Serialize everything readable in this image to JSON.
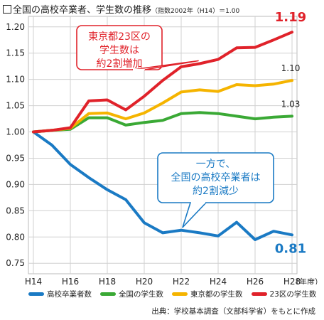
{
  "title": {
    "main": "全国の高校卒業者、学生数の推移",
    "sub": "（指数2002年（H14）＝1.00"
  },
  "chart_data": {
    "type": "line",
    "x": [
      "H14",
      "H15",
      "H16",
      "H17",
      "H18",
      "H19",
      "H20",
      "H21",
      "H22",
      "H23",
      "H24",
      "H25",
      "H26",
      "H27",
      "H28"
    ],
    "x_tick_labels": [
      "H14",
      "H16",
      "H18",
      "H20",
      "H22",
      "H24",
      "H26",
      "H28"
    ],
    "x_unit": "（年度）",
    "ylim": [
      0.73,
      1.22
    ],
    "y_ticks": [
      "1.20",
      "1.15",
      "1.10",
      "1.05",
      "1.00",
      "0.95",
      "0.90",
      "0.85",
      "0.80",
      "0.75"
    ],
    "grid": true,
    "legend_position": "bottom",
    "series": [
      {
        "name": "高校卒業者数",
        "color": "#1a7ac4",
        "values": [
          1.0,
          0.975,
          0.938,
          0.913,
          0.89,
          0.871,
          0.827,
          0.808,
          0.813,
          0.808,
          0.802,
          0.828,
          0.795,
          0.811,
          0.804
        ]
      },
      {
        "name": "全国の学生数",
        "color": "#3aa935",
        "values": [
          1.0,
          1.003,
          1.005,
          1.027,
          1.027,
          1.013,
          1.018,
          1.022,
          1.035,
          1.037,
          1.035,
          1.03,
          1.025,
          1.028,
          1.03
        ]
      },
      {
        "name": "東京都の学生数",
        "color": "#f5b400",
        "values": [
          1.0,
          1.003,
          1.007,
          1.035,
          1.036,
          1.025,
          1.036,
          1.055,
          1.076,
          1.08,
          1.077,
          1.09,
          1.088,
          1.091,
          1.098
        ]
      },
      {
        "name": "23区の学生数",
        "color": "#e0222a",
        "values": [
          1.0,
          1.003,
          1.008,
          1.059,
          1.061,
          1.042,
          1.068,
          1.098,
          1.124,
          1.13,
          1.138,
          1.16,
          1.161,
          1.175,
          1.19
        ]
      }
    ],
    "end_labels": [
      "0.81",
      "1.03",
      "1.10",
      "1.19"
    ],
    "callouts": [
      {
        "lines": [
          "東京都23区の",
          "学生数は",
          "約2割増加"
        ],
        "color": "#e0222a"
      },
      {
        "lines": [
          "一方で、",
          "全国の高校卒業者は",
          "約2割減少"
        ],
        "color": "#1a7ac4"
      }
    ]
  },
  "source": "出典：学校基本調査（文部科学省）をもとに作成"
}
